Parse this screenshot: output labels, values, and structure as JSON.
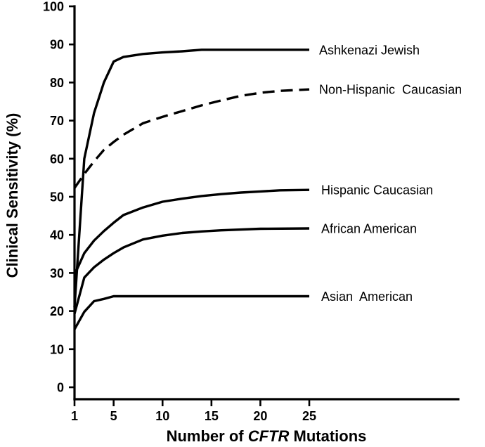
{
  "chart_data": {
    "type": "line",
    "xlabel_prefix": "Number of ",
    "xlabel_italic": "CFTR",
    "xlabel_suffix": " Mutations",
    "ylabel": "Clinical Sensitivity (%)",
    "ylim": [
      0,
      100
    ],
    "xlim": [
      1,
      25
    ],
    "yticks": [
      0,
      10,
      20,
      30,
      40,
      50,
      60,
      70,
      80,
      90,
      100
    ],
    "xticks": [
      1,
      5,
      10,
      15,
      20,
      25
    ],
    "grid": false,
    "series": [
      {
        "name": "Ashkenazi Jewish",
        "style": "solid",
        "x": [
          1,
          2,
          3,
          4,
          5,
          6,
          8,
          10,
          12,
          14,
          16,
          20,
          25
        ],
        "y": [
          21,
          60,
          72,
          80,
          85.5,
          86.7,
          87.5,
          87.9,
          88.2,
          88.6,
          88.6,
          88.6,
          88.6
        ]
      },
      {
        "name": "Non-Hispanic  Caucasian",
        "style": "dashed",
        "x": [
          1,
          2,
          3,
          4,
          5,
          6,
          8,
          10,
          12,
          14,
          16,
          18,
          20,
          22,
          25
        ],
        "y": [
          52.3,
          56,
          59.3,
          62.3,
          64.4,
          66.3,
          69.3,
          71,
          72.5,
          74,
          75.3,
          76.5,
          77.3,
          77.8,
          78.2
        ]
      },
      {
        "name": "Hispanic Caucasian",
        "style": "solid",
        "x": [
          1,
          2,
          3,
          4,
          5,
          6,
          8,
          10,
          12,
          14,
          16,
          18,
          20,
          22,
          25
        ],
        "y": [
          29.5,
          35.2,
          38.5,
          41,
          43.2,
          45.2,
          47.2,
          48.7,
          49.5,
          50.2,
          50.7,
          51.1,
          51.4,
          51.7,
          51.8
        ]
      },
      {
        "name": "African American",
        "style": "solid",
        "x": [
          1,
          2,
          3,
          4,
          5,
          6,
          8,
          10,
          12,
          14,
          16,
          20,
          25
        ],
        "y": [
          19.3,
          28.8,
          31.5,
          33.5,
          35.2,
          36.7,
          38.8,
          39.8,
          40.5,
          40.9,
          41.2,
          41.6,
          41.7
        ]
      },
      {
        "name": "Asian  American",
        "style": "solid",
        "x": [
          1,
          2,
          3,
          4,
          5,
          6,
          10,
          15,
          20,
          25
        ],
        "y": [
          15.2,
          19.8,
          22.6,
          23.2,
          23.9,
          23.9,
          23.9,
          23.9,
          23.9,
          23.9
        ]
      }
    ]
  }
}
